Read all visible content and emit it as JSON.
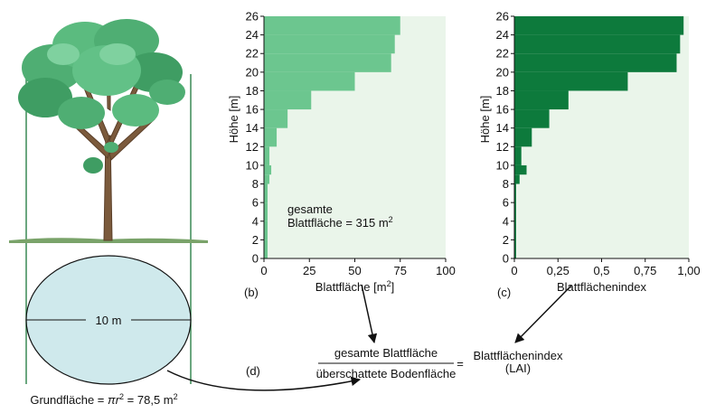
{
  "tree_panel": {
    "diameter_label": "10 m",
    "ground_area_label": "Grundfläche = ",
    "ground_area_formula": "πr",
    "ground_area_sup": "2",
    "ground_area_value": " = 78,5 m",
    "ground_area_value_sup": "2"
  },
  "chart_b": {
    "panel_label": "(b)",
    "annotation_line1": "gesamte",
    "annotation_line2": "Blattfläche  = 315 m",
    "annotation_sup": "2"
  },
  "chart_c": {
    "panel_label": "(c)"
  },
  "equation": {
    "panel_label": "(d)",
    "numerator": "gesamte Blattfläche",
    "denominator": "überschattete Bodenfläche",
    "equals": "=",
    "result_line1": "Blattflächenindex",
    "result_line2": "(LAI)"
  },
  "colors": {
    "light_green": "#6cc68f",
    "dark_green": "#0d7a3c",
    "panel_bg": "#eaf5ea",
    "circle_fill": "#cfe9ec"
  },
  "chart_data": [
    {
      "type": "bar",
      "orientation": "horizontal",
      "xlabel": "Blattfläche  [m2]",
      "ylabel": "Höhe [m]",
      "xlim": [
        0,
        100
      ],
      "ylim": [
        0,
        26
      ],
      "xticks": [
        0,
        25,
        50,
        75,
        100
      ],
      "yticks": [
        0,
        2,
        4,
        6,
        8,
        10,
        12,
        14,
        16,
        18,
        20,
        22,
        24,
        26
      ],
      "bins": [
        {
          "y0": 0,
          "y1": 2,
          "value": 2
        },
        {
          "y0": 2,
          "value": 2,
          "y1": 4
        },
        {
          "y0": 4,
          "y1": 6,
          "value": 2
        },
        {
          "y0": 6,
          "y1": 8,
          "value": 2
        },
        {
          "y0": 8,
          "y1": 9,
          "value": 3
        },
        {
          "y0": 9,
          "y1": 10,
          "value": 4
        },
        {
          "y0": 10,
          "y1": 12,
          "value": 3
        },
        {
          "y0": 12,
          "y1": 14,
          "value": 7
        },
        {
          "y0": 14,
          "y1": 16,
          "value": 13
        },
        {
          "y0": 16,
          "y1": 18,
          "value": 26
        },
        {
          "y0": 18,
          "y1": 20,
          "value": 50
        },
        {
          "y0": 20,
          "y1": 22,
          "value": 70
        },
        {
          "y0": 22,
          "y1": 24,
          "value": 72
        },
        {
          "y0": 24,
          "y1": 26,
          "value": 75
        }
      ]
    },
    {
      "type": "bar",
      "orientation": "horizontal",
      "xlabel": "Blattflächenindex",
      "ylabel": "Höhe [m]",
      "xlim": [
        0,
        1
      ],
      "ylim": [
        0,
        26
      ],
      "xticks": [
        "0",
        "0,25",
        "0,5",
        "0,75",
        "1,00"
      ],
      "yticks": [
        0,
        2,
        4,
        6,
        8,
        10,
        12,
        14,
        16,
        18,
        20,
        22,
        24,
        26
      ],
      "bins": [
        {
          "y0": 0,
          "y1": 8,
          "value": 0.01
        },
        {
          "y0": 8,
          "y1": 9,
          "value": 0.03
        },
        {
          "y0": 9,
          "y1": 10,
          "value": 0.07
        },
        {
          "y0": 10,
          "y1": 12,
          "value": 0.04
        },
        {
          "y0": 12,
          "y1": 14,
          "value": 0.1
        },
        {
          "y0": 14,
          "y1": 16,
          "value": 0.2
        },
        {
          "y0": 16,
          "y1": 18,
          "value": 0.31
        },
        {
          "y0": 18,
          "y1": 20,
          "value": 0.65
        },
        {
          "y0": 20,
          "y1": 22,
          "value": 0.93
        },
        {
          "y0": 22,
          "y1": 24,
          "value": 0.95
        },
        {
          "y0": 24,
          "y1": 26,
          "value": 0.97
        }
      ]
    }
  ]
}
